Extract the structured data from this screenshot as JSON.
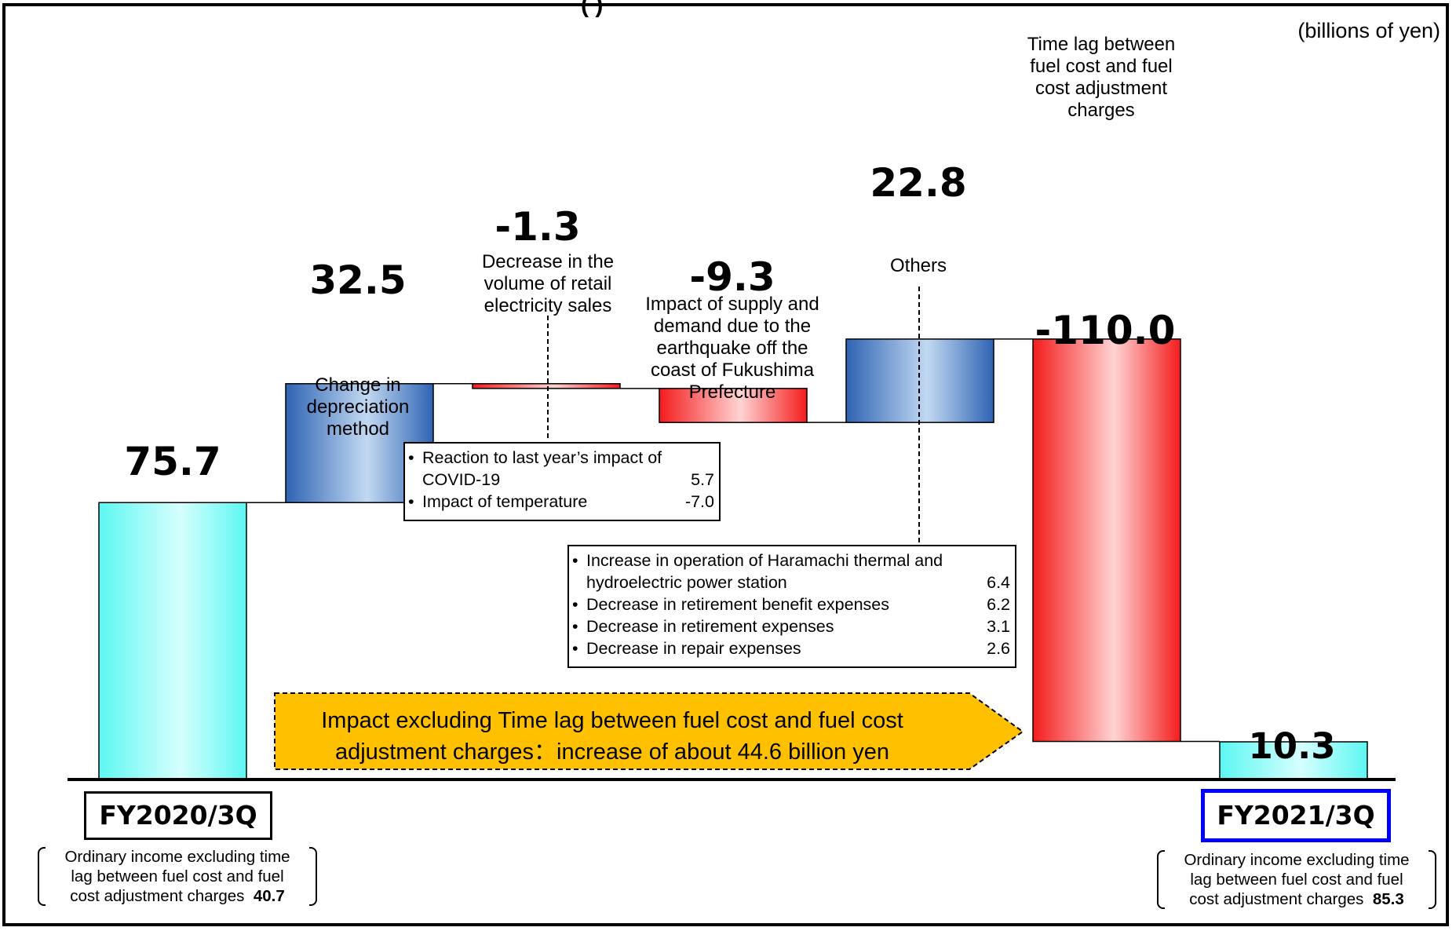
{
  "unit_label": "(billions of yen)",
  "title_fragment": "(                    )",
  "chart_data": {
    "type": "bar",
    "subtype": "waterfall",
    "unit": "billions of yen",
    "ylim": [
      0,
      120
    ],
    "categories": [
      "FY2020/3Q",
      "Change in depreciation method",
      "Decrease in the volume of retail electricity sales",
      "Impact of supply and demand due to the earthquake off the coast of Fukushima Prefecture",
      "Others",
      "Time lag between fuel cost and fuel cost adjustment charges",
      "FY2021/3Q"
    ],
    "values": [
      75.7,
      32.5,
      -1.3,
      -9.3,
      22.8,
      -110.0,
      10.3
    ],
    "value_labels": [
      "75.7",
      "32.5",
      "-1.3",
      "-9.3",
      "22.8",
      "-110.0",
      "10.3"
    ],
    "kinds": [
      "total",
      "delta",
      "delta",
      "delta",
      "delta",
      "delta",
      "total"
    ],
    "colors": {
      "total_fill": "#5CF7F2",
      "total_fill_light": "#D6FFFE",
      "increase_fill": "#2E63B3",
      "increase_fill_light": "#C2D9F2",
      "decrease_fill": "#F51C1C",
      "decrease_fill_light": "#FFD3D3",
      "banner_fill": "#FFC000",
      "fy2021_border": "#0000FF"
    }
  },
  "labels": {
    "depreciation": [
      "Change in",
      "depreciation",
      "method"
    ],
    "retail": [
      "Decrease in the",
      "volume of retail",
      "electricity sales"
    ],
    "earthquake": [
      "Impact of supply and",
      "demand due to the",
      "earthquake off the",
      "coast of Fukushima",
      "Prefecture"
    ],
    "others": [
      "Others"
    ],
    "timelag": [
      "Time lag between",
      "fuel cost and fuel",
      "cost adjustment",
      "charges"
    ]
  },
  "retail_box": {
    "items": [
      {
        "text": [
          "Reaction to last year’s impact of",
          "COVID-19"
        ],
        "value": "5.7"
      },
      {
        "text": [
          "Impact of temperature"
        ],
        "value": "-7.0"
      }
    ]
  },
  "others_box": {
    "items": [
      {
        "text": [
          "Increase in operation of Haramachi thermal and",
          "hydroelectric power station"
        ],
        "value": "6.4"
      },
      {
        "text": [
          "Decrease in retirement benefit expenses"
        ],
        "value": "6.2"
      },
      {
        "text": [
          "Decrease in retirement expenses"
        ],
        "value": "3.1"
      },
      {
        "text": [
          "Decrease in repair expenses"
        ],
        "value": "2.6"
      }
    ]
  },
  "banner": {
    "line1": "Impact excluding Time lag between fuel cost and fuel cost",
    "line2": "adjustment charges：increase of about 44.6 billion yen"
  },
  "fy2020": {
    "label": "FY2020/3Q",
    "note_lines": [
      "Ordinary income excluding time",
      "lag between fuel cost and fuel"
    ],
    "note_last": "cost adjustment charges",
    "note_value": "40.7"
  },
  "fy2021": {
    "label": "FY2021/3Q",
    "note_lines": [
      "Ordinary income excluding time",
      "lag between fuel cost and fuel"
    ],
    "note_last": "cost adjustment charges",
    "note_value": "85.3"
  }
}
